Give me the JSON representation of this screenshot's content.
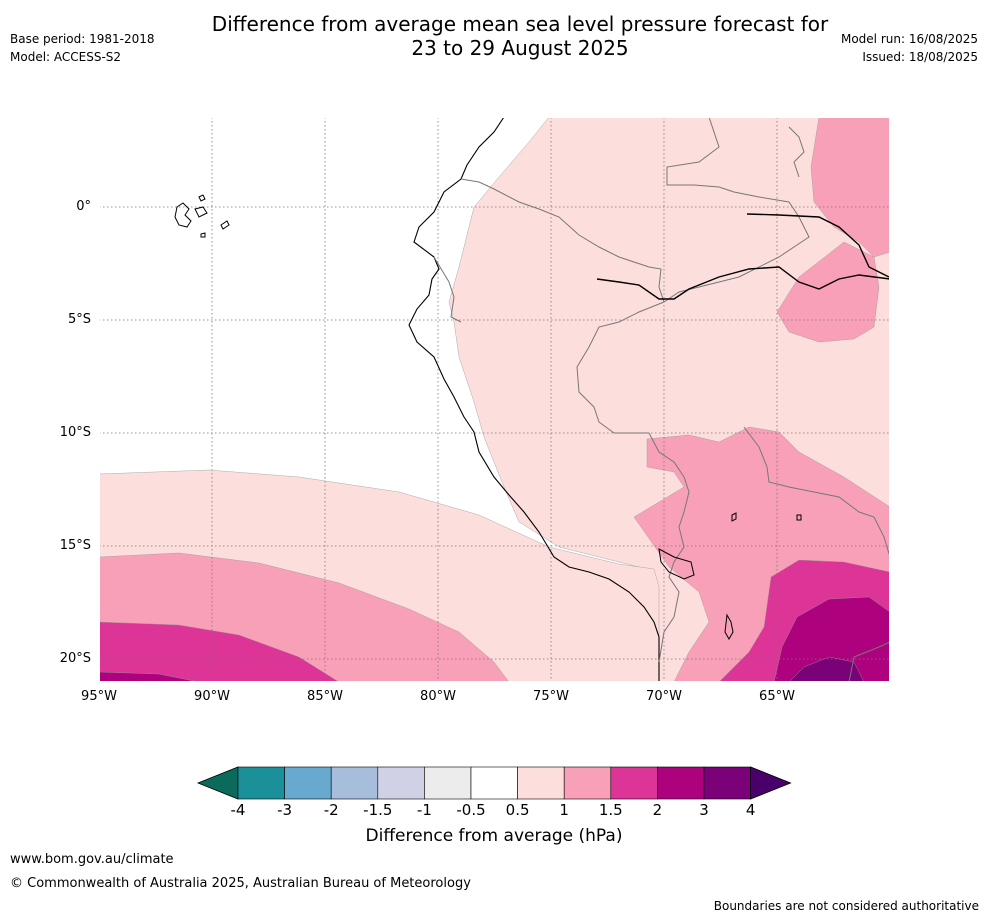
{
  "header": {
    "title_line1": "Difference from average mean sea level pressure forecast for",
    "title_line2": "23 to 29 August 2025",
    "base_period": "Base period: 1981-2018",
    "model": "Model: ACCESS-S2",
    "model_run": "Model run: 16/08/2025",
    "issued": "Issued: 18/08/2025"
  },
  "map": {
    "lat_labels": [
      "0°",
      "5°S",
      "10°S",
      "15°S",
      "20°S"
    ],
    "lon_labels": [
      "95°W",
      "90°W",
      "85°W",
      "80°W",
      "75°W",
      "70°W",
      "65°W"
    ],
    "colors": {
      "bin_0_5_to_1": "#fcdedc",
      "bin_1_to_1_5": "#f8a0b8",
      "bin_1_5_to_2": "#dd3497",
      "bin_2_to_3": "#ae017e",
      "bin_3_to_4": "#7a0177"
    }
  },
  "colorbar": {
    "title": "Difference from average (hPa)",
    "ticks": [
      "-4",
      "-3",
      "-2",
      "-1.5",
      "-1",
      "-0.5",
      "0.5",
      "1",
      "1.5",
      "2",
      "3",
      "4"
    ],
    "colors": [
      "#0b6b5a",
      "#1c9099",
      "#67a9cf",
      "#a6bddb",
      "#d0d1e6",
      "#ececec",
      "#ffffff",
      "#fcdedc",
      "#f8a0b8",
      "#dd3497",
      "#ae017e",
      "#7a0177",
      "#49006a"
    ]
  },
  "footer": {
    "url": "www.bom.gov.au/climate",
    "copyright": "© Commonwealth of Australia 2025, Australian Bureau of Meteorology",
    "disclaimer": "Boundaries are not considered authoritative"
  }
}
